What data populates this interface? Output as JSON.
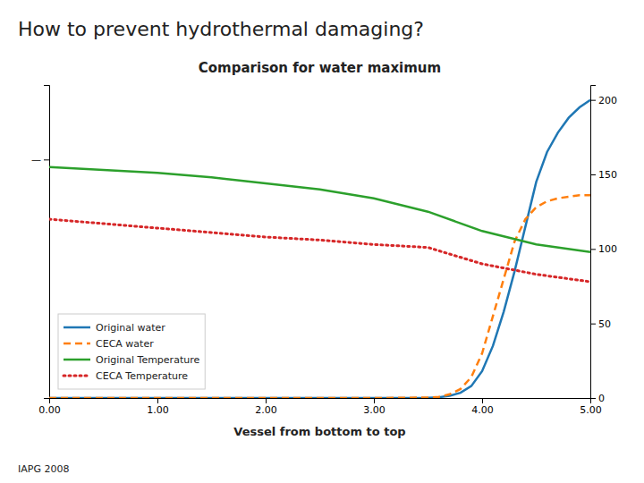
{
  "chart_data": {
    "type": "line",
    "title": "How to prevent hydrothermal damaging?",
    "subtitle": "Comparison for water maximum",
    "x_label": "Vessel from bottom to top",
    "annotations": [
      "IAPG 2008"
    ],
    "xlim": [
      0.0,
      5.0
    ],
    "xticks": [
      {
        "value": 0.0,
        "label": "0.00"
      },
      {
        "value": 1.0,
        "label": "1.00"
      },
      {
        "value": 2.0,
        "label": "2.00"
      },
      {
        "value": 3.0,
        "label": "3.00"
      },
      {
        "value": 4.0,
        "label": "4.00"
      },
      {
        "value": 5.0,
        "label": "5.00"
      }
    ],
    "ylim": [
      0,
      210
    ],
    "yticks": [
      {
        "value": 160,
        "label": "—"
      }
    ],
    "y2lim": [
      0,
      210
    ],
    "y2ticks": [
      0,
      50,
      100,
      150,
      200
    ],
    "grid": false,
    "legend": "lower left",
    "series": [
      {
        "name": "Original water",
        "line_style": "solid",
        "x": [
          0.0,
          0.5,
          1.0,
          1.5,
          2.0,
          2.5,
          3.0,
          3.5,
          3.6,
          3.7,
          3.8,
          3.9,
          4.0,
          4.1,
          4.2,
          4.3,
          4.4,
          4.5,
          4.6,
          4.7,
          4.8,
          4.9,
          5.0
        ],
        "values": [
          0.0,
          0.0,
          0.0,
          0.0,
          0.0,
          0.0,
          0.0,
          0.2,
          0.5,
          1.5,
          3.5,
          8.0,
          18.0,
          35.0,
          58.0,
          85.0,
          115.0,
          145.0,
          165.0,
          178.0,
          188.0,
          195.0,
          200.0
        ]
      },
      {
        "name": "CECA water",
        "line_style": "dashed",
        "x": [
          0.0,
          0.5,
          1.0,
          1.5,
          2.0,
          2.5,
          3.0,
          3.5,
          3.6,
          3.7,
          3.8,
          3.9,
          4.0,
          4.1,
          4.2,
          4.3,
          4.4,
          4.5,
          4.6,
          4.7,
          4.8,
          4.9,
          5.0
        ],
        "values": [
          0.0,
          0.0,
          0.0,
          0.0,
          0.0,
          0.0,
          0.0,
          0.3,
          0.8,
          2.5,
          6.0,
          14.0,
          30.0,
          55.0,
          80.0,
          105.0,
          120.0,
          128.0,
          132.0,
          134.0,
          135.0,
          136.0,
          136.0
        ]
      },
      {
        "name": "Original Temperature",
        "line_style": "solid",
        "x": [
          0.0,
          0.5,
          1.0,
          1.5,
          2.0,
          2.5,
          3.0,
          3.5,
          4.0,
          4.5,
          5.0
        ],
        "values": [
          155.0,
          153.0,
          151.0,
          148.0,
          144.0,
          140.0,
          134.0,
          125.0,
          112.0,
          103.0,
          98.0
        ]
      },
      {
        "name": "CECA Temperature",
        "line_style": "dotted",
        "x": [
          0.0,
          0.5,
          1.0,
          1.5,
          2.0,
          2.5,
          3.0,
          3.5,
          4.0,
          4.5,
          5.0
        ],
        "values": [
          120.0,
          117.0,
          114.0,
          111.0,
          108.0,
          106.0,
          103.0,
          101.0,
          90.0,
          83.0,
          78.0
        ]
      }
    ]
  }
}
